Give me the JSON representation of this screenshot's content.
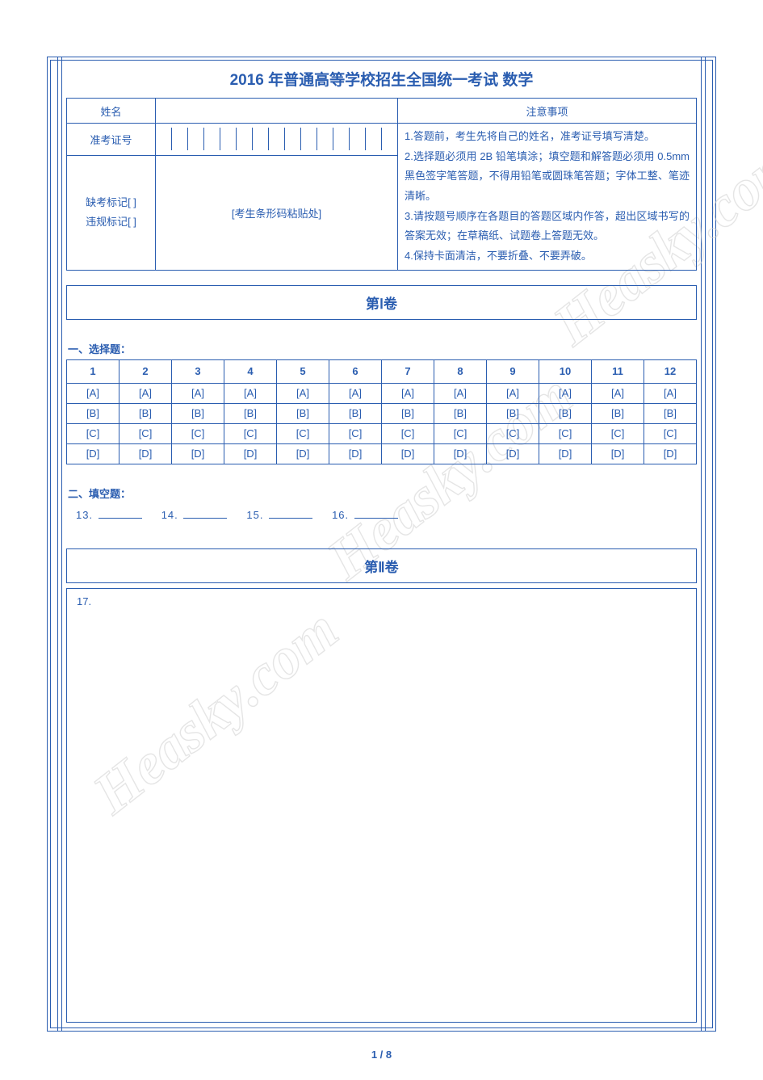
{
  "title": "2016 年普通高等学校招生全国统一考试  数学",
  "labels": {
    "name": "姓名",
    "admission_no": "准考证号",
    "absent_mark": "缺考标记[   ]",
    "violation_mark": "违规标记[   ]",
    "barcode": "[考生条形码粘贴处]",
    "notice_title": "注意事项"
  },
  "admission_boxes": 15,
  "notices": [
    "1.答题前，考生先将自己的姓名，准考证号填写清楚。",
    "2.选择题必须用 2B 铅笔填涂；填空题和解答题必须用 0.5mm 黑色签字笔答题，不得用铅笔或圆珠笔答题；字体工整、笔迹清晰。",
    "3.请按题号顺序在各题目的答题区域内作答，超出区域书写的答案无效；在草稿纸、试题卷上答题无效。",
    "4.保持卡面清洁，不要折叠、不要弄破。"
  ],
  "vol1": {
    "title": "第Ⅰ卷",
    "mc_label": "一、选择题：",
    "mc_count": 12,
    "options": [
      "[A]",
      "[B]",
      "[C]",
      "[D]"
    ],
    "fill_label": "二、填空题：",
    "fill_start": 13,
    "fill_count": 4
  },
  "vol2": {
    "title": "第Ⅱ卷",
    "first_q": "17."
  },
  "footer": "1  /  8",
  "watermark_text": "Heasky.com",
  "colors": {
    "ink": "#2a5db0"
  }
}
